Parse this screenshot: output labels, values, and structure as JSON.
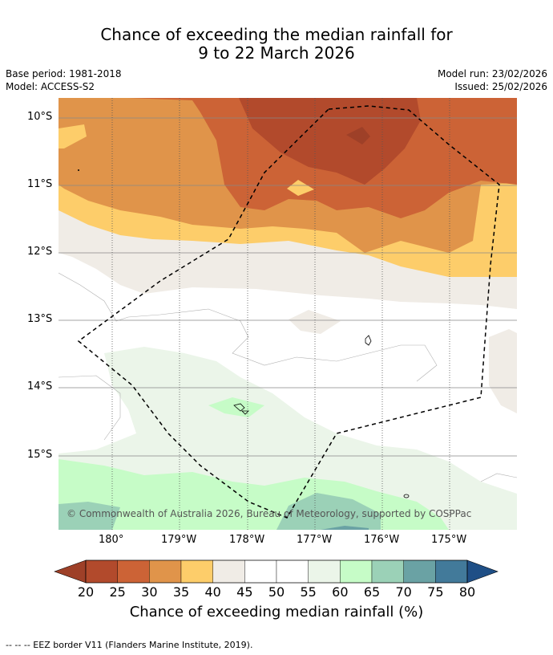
{
  "title": {
    "line1": "Chance of exceeding the median rainfall for",
    "line2": "9 to 22 March 2026"
  },
  "meta": {
    "base_period": "Base period: 1981-2018",
    "model": "Model: ACCESS-S2",
    "model_run": "Model run: 23/02/2026",
    "issued": "Issued: 25/02/2026"
  },
  "axes": {
    "lat_labels": [
      "10°S",
      "11°S",
      "12°S",
      "13°S",
      "14°S",
      "15°S"
    ],
    "lon_labels": [
      "180°",
      "179°W",
      "178°W",
      "177°W",
      "176°W",
      "175°W"
    ]
  },
  "copyright": "© Commonwealth of Australia 2026, Bureau of Meteorology, supported by COSPPac",
  "colorbar": {
    "ticks": [
      "20",
      "25",
      "30",
      "35",
      "40",
      "45",
      "50",
      "55",
      "60",
      "65",
      "70",
      "75",
      "80"
    ],
    "colors": [
      "#b24a2c",
      "#cc6336",
      "#e0944a",
      "#fdcd6a",
      "#f0ece6",
      "#ffffff",
      "#ffffff",
      "#ebf5e9",
      "#c6fcc7",
      "#9bd1b7",
      "#6aa2a4",
      "#427a9a"
    ],
    "low_color": "#9e4028",
    "high_color": "#1f4f86",
    "label": "Chance of exceeding median rainfall (%)"
  },
  "legend": "--  --  -- EEZ border V11 (Flanders Marine Institute, 2019)."
}
